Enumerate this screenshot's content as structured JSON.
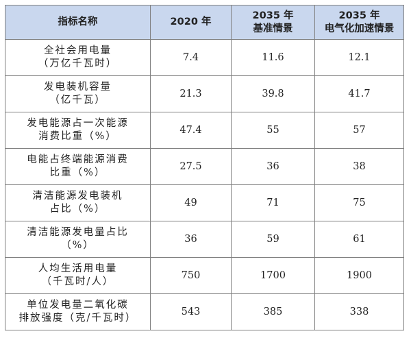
{
  "headers": [
    "指标名称",
    "2020 年",
    "2035 年\n基准情景",
    "2035 年\n电气化加速情景"
  ],
  "rows": [
    {
      "name": "全社会用电量\n（万亿千瓦时）",
      "v2020": "7.4",
      "base": "11.6",
      "accel": "12.1"
    },
    {
      "name": "发电装机容量\n（亿千瓦）",
      "v2020": "21.3",
      "base": "39.8",
      "accel": "41.7"
    },
    {
      "name": "发电能源占一次能源\n消费比重（%）",
      "v2020": "47.4",
      "base": "55",
      "accel": "57"
    },
    {
      "name": "电能占终端能源消费\n比重（%）",
      "v2020": "27.5",
      "base": "36",
      "accel": "38"
    },
    {
      "name": "清洁能源发电装机\n占比（%）",
      "v2020": "49",
      "base": "71",
      "accel": "75"
    },
    {
      "name": "清洁能源发电量占比\n（%）",
      "v2020": "36",
      "base": "59",
      "accel": "61"
    },
    {
      "name": "人均生活用电量\n（千瓦时/人）",
      "v2020": "750",
      "base": "1700",
      "accel": "1900"
    },
    {
      "name": "单位发电量二氧化碳\n排放强度（克/千瓦时）",
      "v2020": "543",
      "base": "385",
      "accel": "338"
    }
  ]
}
